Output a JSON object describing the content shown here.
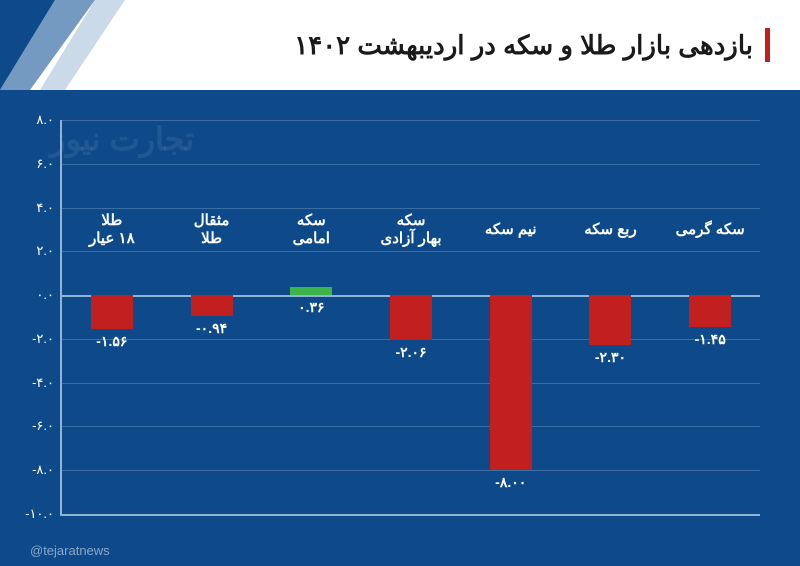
{
  "title": "بازدهی بازار طلا و سکه در اردیبهشت ۱۴۰۲",
  "watermark": "تجارت نیوز",
  "credit": "@tejaratnews",
  "chart": {
    "type": "bar",
    "background_color": "#0e4a8a",
    "axis_color": "#8fb3d4",
    "grid_color": "#5a86b2",
    "text_color": "#ffffff",
    "positive_color": "#3bb54a",
    "negative_color": "#c21f1f",
    "ymin": -10,
    "ymax": 8,
    "ytick_step": 2,
    "yticks": [
      {
        "v": 8,
        "label": "۸.۰"
      },
      {
        "v": 6,
        "label": "۶.۰"
      },
      {
        "v": 4,
        "label": "۴.۰"
      },
      {
        "v": 2,
        "label": "۲.۰"
      },
      {
        "v": 0,
        "label": "۰.۰"
      },
      {
        "v": -2,
        "label": "-۲.۰"
      },
      {
        "v": -4,
        "label": "-۴.۰"
      },
      {
        "v": -6,
        "label": "-۶.۰"
      },
      {
        "v": -8,
        "label": "-۸.۰"
      },
      {
        "v": -10,
        "label": "-۱۰.۰"
      }
    ],
    "categories": [
      {
        "label": "طلا\n۱۸ عیار",
        "value": -1.56,
        "vlabel": "-۱.۵۶"
      },
      {
        "label": "مثقال\nطلا",
        "value": -0.94,
        "vlabel": "-۰.۹۴"
      },
      {
        "label": "سکه\nامامی",
        "value": 0.36,
        "vlabel": "۰.۳۶"
      },
      {
        "label": "سکه\nبهار آزادی",
        "value": -2.06,
        "vlabel": "-۲.۰۶"
      },
      {
        "label": "نیم سکه",
        "value": -8.0,
        "vlabel": "-۸.۰۰"
      },
      {
        "label": "ربع سکه",
        "value": -2.3,
        "vlabel": "-۲.۳۰"
      },
      {
        "label": "سکه گرمی",
        "value": -1.45,
        "vlabel": "-۱.۴۵"
      }
    ]
  }
}
